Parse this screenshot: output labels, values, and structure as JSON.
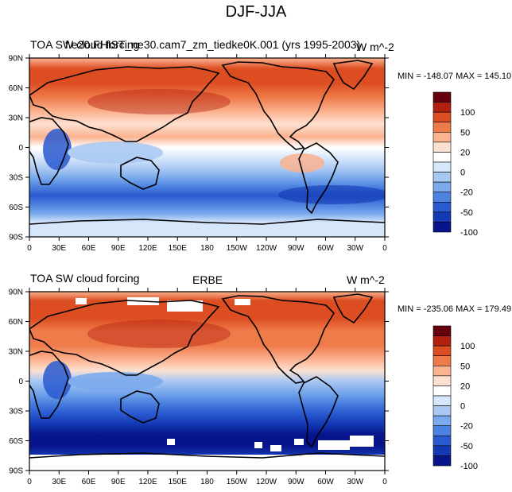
{
  "title": "DJF-JJA",
  "panels": [
    {
      "left_title": "TOA SW cloud forcing",
      "center_title": "f.e20.FHIST_ne30.cam7_zm_tiedke0K.001 (yrs 1995-2003)",
      "units": "W m^-2",
      "min_max": "MIN = -148.07 MAX = 145.10",
      "missing_data": false
    },
    {
      "left_title": "TOA SW cloud forcing",
      "center_title": "ERBE",
      "units": "W m^-2",
      "min_max": "MIN = -235.06 MAX = 179.49",
      "missing_data": true
    }
  ],
  "lat_labels": [
    "90N",
    "60N",
    "30N",
    "0",
    "30S",
    "60S",
    "90S"
  ],
  "lon_labels": [
    "0",
    "30E",
    "60E",
    "90E",
    "120E",
    "150E",
    "180",
    "150W",
    "120W",
    "90W",
    "60W",
    "30W",
    "0"
  ],
  "colorbar": {
    "labels": [
      "100",
      "50",
      "20",
      "0",
      "-20",
      "-50",
      "-100"
    ],
    "colors": [
      "#67000d",
      "#b2200f",
      "#dc4e22",
      "#ef7a4a",
      "#fbb390",
      "#fde0d0",
      "#ffffff",
      "#d6e6fb",
      "#a8c8f3",
      "#7aa9ec",
      "#4c82e0",
      "#2a5ad0",
      "#1339b4",
      "#07148a"
    ]
  }
}
